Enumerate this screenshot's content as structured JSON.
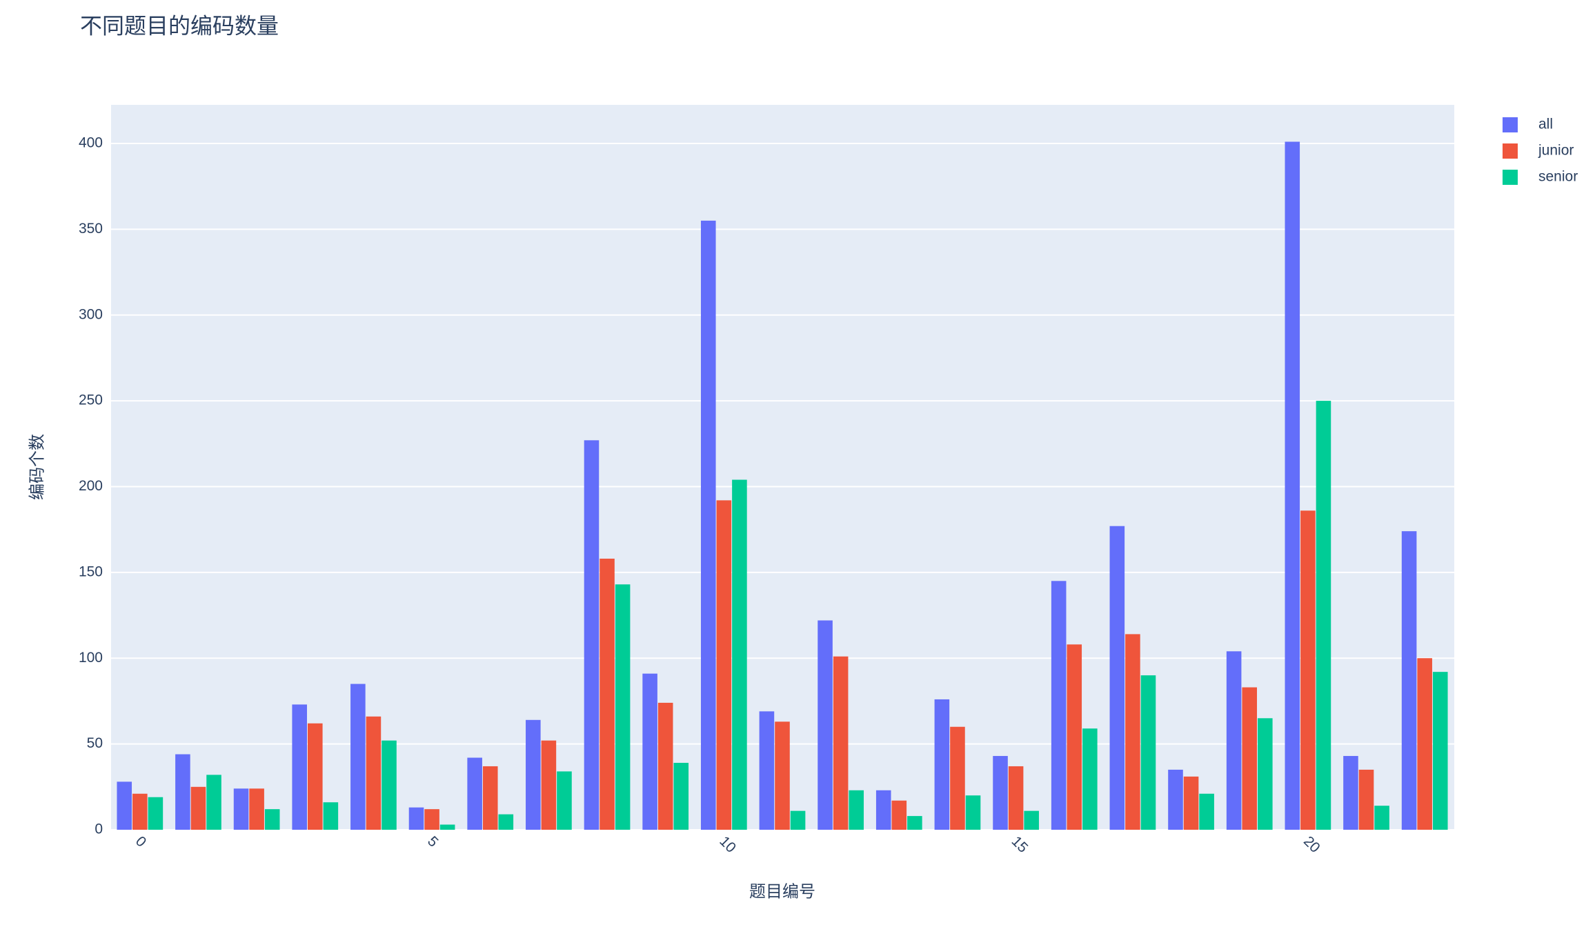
{
  "chart_data": {
    "type": "bar",
    "title": "不同题目的编码数量",
    "x_label": "题目编号",
    "y_label": "编码个数",
    "x": [
      0,
      1,
      2,
      3,
      4,
      5,
      6,
      7,
      8,
      9,
      10,
      11,
      12,
      13,
      14,
      15,
      16,
      17,
      18,
      19,
      20,
      21,
      22
    ],
    "series": [
      {
        "name": "all",
        "color": "#636efa",
        "values": [
          28,
          44,
          24,
          73,
          85,
          13,
          42,
          64,
          227,
          91,
          355,
          69,
          122,
          23,
          76,
          43,
          145,
          177,
          35,
          104,
          401,
          43,
          174
        ]
      },
      {
        "name": "junior",
        "color": "#ef553b",
        "values": [
          21,
          25,
          24,
          62,
          66,
          12,
          37,
          52,
          158,
          74,
          192,
          63,
          101,
          17,
          60,
          37,
          108,
          114,
          31,
          83,
          186,
          35,
          100
        ]
      },
      {
        "name": "senior",
        "color": "#00cc96",
        "values": [
          19,
          32,
          12,
          16,
          52,
          3,
          9,
          34,
          143,
          39,
          204,
          11,
          23,
          8,
          20,
          11,
          59,
          90,
          21,
          65,
          250,
          14,
          92
        ]
      }
    ],
    "xlim": [
      -0.5,
      22.5
    ],
    "xticks": [
      0,
      5,
      10,
      15,
      20
    ],
    "ylim": [
      0,
      422.5
    ],
    "yticks": [
      0,
      50,
      100,
      150,
      200,
      250,
      300,
      350,
      400
    ],
    "grid": true,
    "legend": "right"
  }
}
